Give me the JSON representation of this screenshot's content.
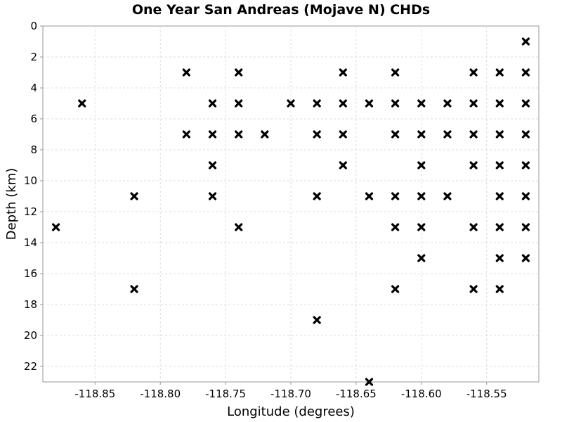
{
  "chart_data": {
    "type": "scatter",
    "title": "One Year San Andreas (Mojave N) CHDs",
    "xlabel": "Longitude (degrees)",
    "ylabel": "Depth (km)",
    "xlim": [
      -118.89,
      -118.51
    ],
    "ylim": [
      0,
      23
    ],
    "y_inverted": true,
    "grid": true,
    "marker": "x",
    "marker_color": "#000000",
    "x_ticks": [
      "-118.85",
      "-118.80",
      "-118.75",
      "-118.70",
      "-118.65",
      "-118.60",
      "-118.55"
    ],
    "x_tick_values": [
      -118.85,
      -118.8,
      -118.75,
      -118.7,
      -118.65,
      -118.6,
      -118.55
    ],
    "y_ticks": [
      "0",
      "2",
      "4",
      "6",
      "8",
      "10",
      "12",
      "14",
      "16",
      "18",
      "20",
      "22"
    ],
    "y_tick_values": [
      0,
      2,
      4,
      6,
      8,
      10,
      12,
      14,
      16,
      18,
      20,
      22
    ],
    "points": [
      [
        -118.52,
        1
      ],
      [
        -118.78,
        3
      ],
      [
        -118.74,
        3
      ],
      [
        -118.66,
        3
      ],
      [
        -118.62,
        3
      ],
      [
        -118.56,
        3
      ],
      [
        -118.54,
        3
      ],
      [
        -118.52,
        3
      ],
      [
        -118.86,
        5
      ],
      [
        -118.76,
        5
      ],
      [
        -118.74,
        5
      ],
      [
        -118.7,
        5
      ],
      [
        -118.68,
        5
      ],
      [
        -118.66,
        5
      ],
      [
        -118.64,
        5
      ],
      [
        -118.62,
        5
      ],
      [
        -118.6,
        5
      ],
      [
        -118.58,
        5
      ],
      [
        -118.56,
        5
      ],
      [
        -118.54,
        5
      ],
      [
        -118.52,
        5
      ],
      [
        -118.78,
        7
      ],
      [
        -118.76,
        7
      ],
      [
        -118.74,
        7
      ],
      [
        -118.72,
        7
      ],
      [
        -118.68,
        7
      ],
      [
        -118.66,
        7
      ],
      [
        -118.62,
        7
      ],
      [
        -118.6,
        7
      ],
      [
        -118.58,
        7
      ],
      [
        -118.56,
        7
      ],
      [
        -118.54,
        7
      ],
      [
        -118.52,
        7
      ],
      [
        -118.76,
        9
      ],
      [
        -118.66,
        9
      ],
      [
        -118.6,
        9
      ],
      [
        -118.56,
        9
      ],
      [
        -118.54,
        9
      ],
      [
        -118.52,
        9
      ],
      [
        -118.82,
        11
      ],
      [
        -118.76,
        11
      ],
      [
        -118.68,
        11
      ],
      [
        -118.64,
        11
      ],
      [
        -118.62,
        11
      ],
      [
        -118.6,
        11
      ],
      [
        -118.58,
        11
      ],
      [
        -118.54,
        11
      ],
      [
        -118.52,
        11
      ],
      [
        -118.88,
        13
      ],
      [
        -118.74,
        13
      ],
      [
        -118.62,
        13
      ],
      [
        -118.6,
        13
      ],
      [
        -118.56,
        13
      ],
      [
        -118.54,
        13
      ],
      [
        -118.52,
        13
      ],
      [
        -118.6,
        15
      ],
      [
        -118.54,
        15
      ],
      [
        -118.52,
        15
      ],
      [
        -118.82,
        17
      ],
      [
        -118.62,
        17
      ],
      [
        -118.56,
        17
      ],
      [
        -118.54,
        17
      ],
      [
        -118.68,
        19
      ],
      [
        -118.64,
        23
      ]
    ]
  }
}
